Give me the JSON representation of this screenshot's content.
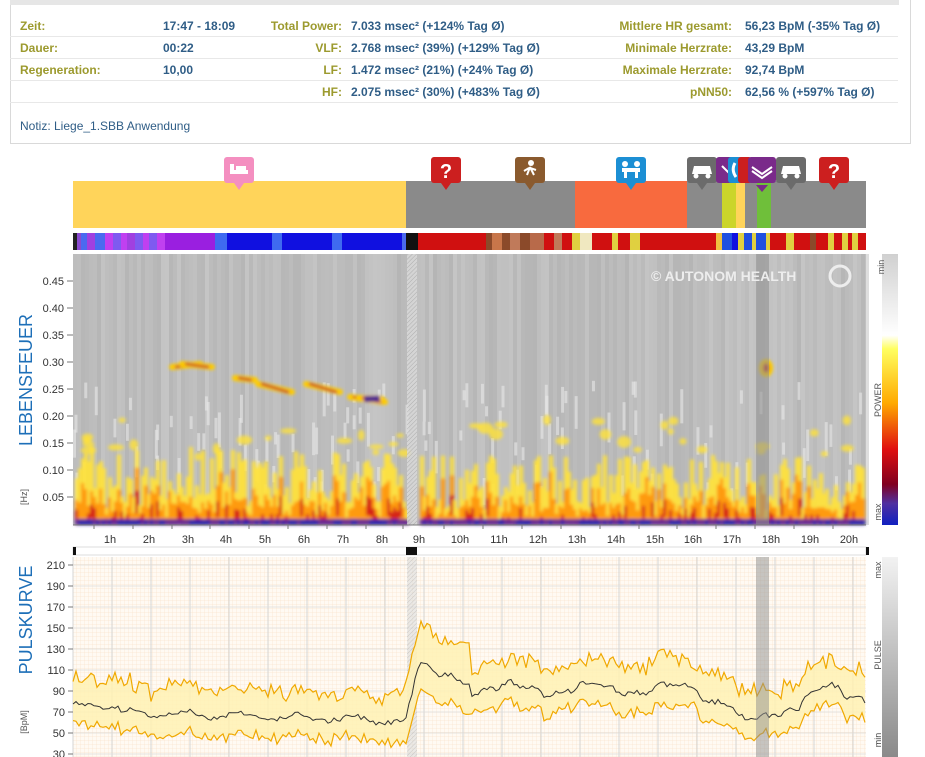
{
  "summary": {
    "left": [
      {
        "label": "Zeit:",
        "value": "17:47 - 18:09"
      },
      {
        "label": "Dauer:",
        "value": "00:22"
      },
      {
        "label": "Regeneration:",
        "value": "10,00"
      },
      {
        "label": "",
        "value": ""
      }
    ],
    "middle": [
      {
        "label": "Total Power:",
        "value": "7.033 msec² (+124% Tag Ø)"
      },
      {
        "label": "VLF:",
        "value": "2.768 msec² (39%) (+129% Tag Ø)"
      },
      {
        "label": "LF:",
        "value": "1.472 msec² (21%) (+24% Tag Ø)"
      },
      {
        "label": "HF:",
        "value": "2.075 msec² (30%) (+483% Tag Ø)"
      }
    ],
    "right": [
      {
        "label": "Mittlere HR gesamt:",
        "value": "56,23 BpM (-35% Tag Ø)"
      },
      {
        "label": "Minimale Herzrate:",
        "value": "43,29 BpM"
      },
      {
        "label": "Maximale Herzrate:",
        "value": "92,74 BpM"
      },
      {
        "label": "pNN50:",
        "value": "62,56 % (+597% Tag Ø)"
      }
    ],
    "note": "Notiz: Liege_1.SBB Anwendung"
  },
  "spectrogram": {
    "title": "LEBENSFEUER",
    "unit": "[Hz]",
    "y_ticks": [
      "0.45",
      "0.40",
      "0.35",
      "0.30",
      "0.25",
      "0.20",
      "0.15",
      "0.10",
      "0.05"
    ],
    "x_ticks": [
      "1h",
      "2h",
      "3h",
      "4h",
      "5h",
      "6h",
      "7h",
      "8h",
      "9h",
      "10h",
      "11h",
      "12h",
      "13h",
      "14h",
      "15h",
      "16h",
      "17h",
      "18h",
      "19h",
      "20h"
    ],
    "watermark": "© AUTONOM HEALTH",
    "scale_labels": {
      "top": "min",
      "mid": "POWER",
      "bottom": "max"
    }
  },
  "pulse": {
    "title": "PULSKURVE",
    "unit": "[BpM]",
    "y_ticks": [
      "210",
      "190",
      "170",
      "150",
      "130",
      "110",
      "90",
      "70",
      "50",
      "30"
    ],
    "scale_labels": {
      "top": "max",
      "mid": "PULSE",
      "bottom": "min"
    }
  },
  "activity_icons": [
    {
      "name": "bed-icon",
      "color": "#f48fc0",
      "glyph": "🛏"
    },
    {
      "name": "unknown-icon",
      "color": "#cc1f1f",
      "glyph": "?"
    },
    {
      "name": "walking-icon",
      "color": "#8a5a2e",
      "glyph": "🚶"
    },
    {
      "name": "meeting-icon",
      "color": "#1c8fd4",
      "glyph": "👥"
    },
    {
      "name": "car-icon",
      "color": "#6b6b6b",
      "glyph": "🚗"
    },
    {
      "name": "reading-icon",
      "color": "#7a2a8a",
      "glyph": "📖"
    },
    {
      "name": "car-icon",
      "color": "#6b6b6b",
      "glyph": "🚗"
    },
    {
      "name": "unknown-icon",
      "color": "#cc1f1f",
      "glyph": "?"
    }
  ],
  "colors": {
    "label": "#9c9a2e",
    "value": "#2f5d86",
    "axis_title": "#1d6fb8",
    "sleep": "#ffd45a",
    "unknown": "#8a8a8a",
    "activity": "#f86a3e",
    "line": "#f0a800"
  }
}
